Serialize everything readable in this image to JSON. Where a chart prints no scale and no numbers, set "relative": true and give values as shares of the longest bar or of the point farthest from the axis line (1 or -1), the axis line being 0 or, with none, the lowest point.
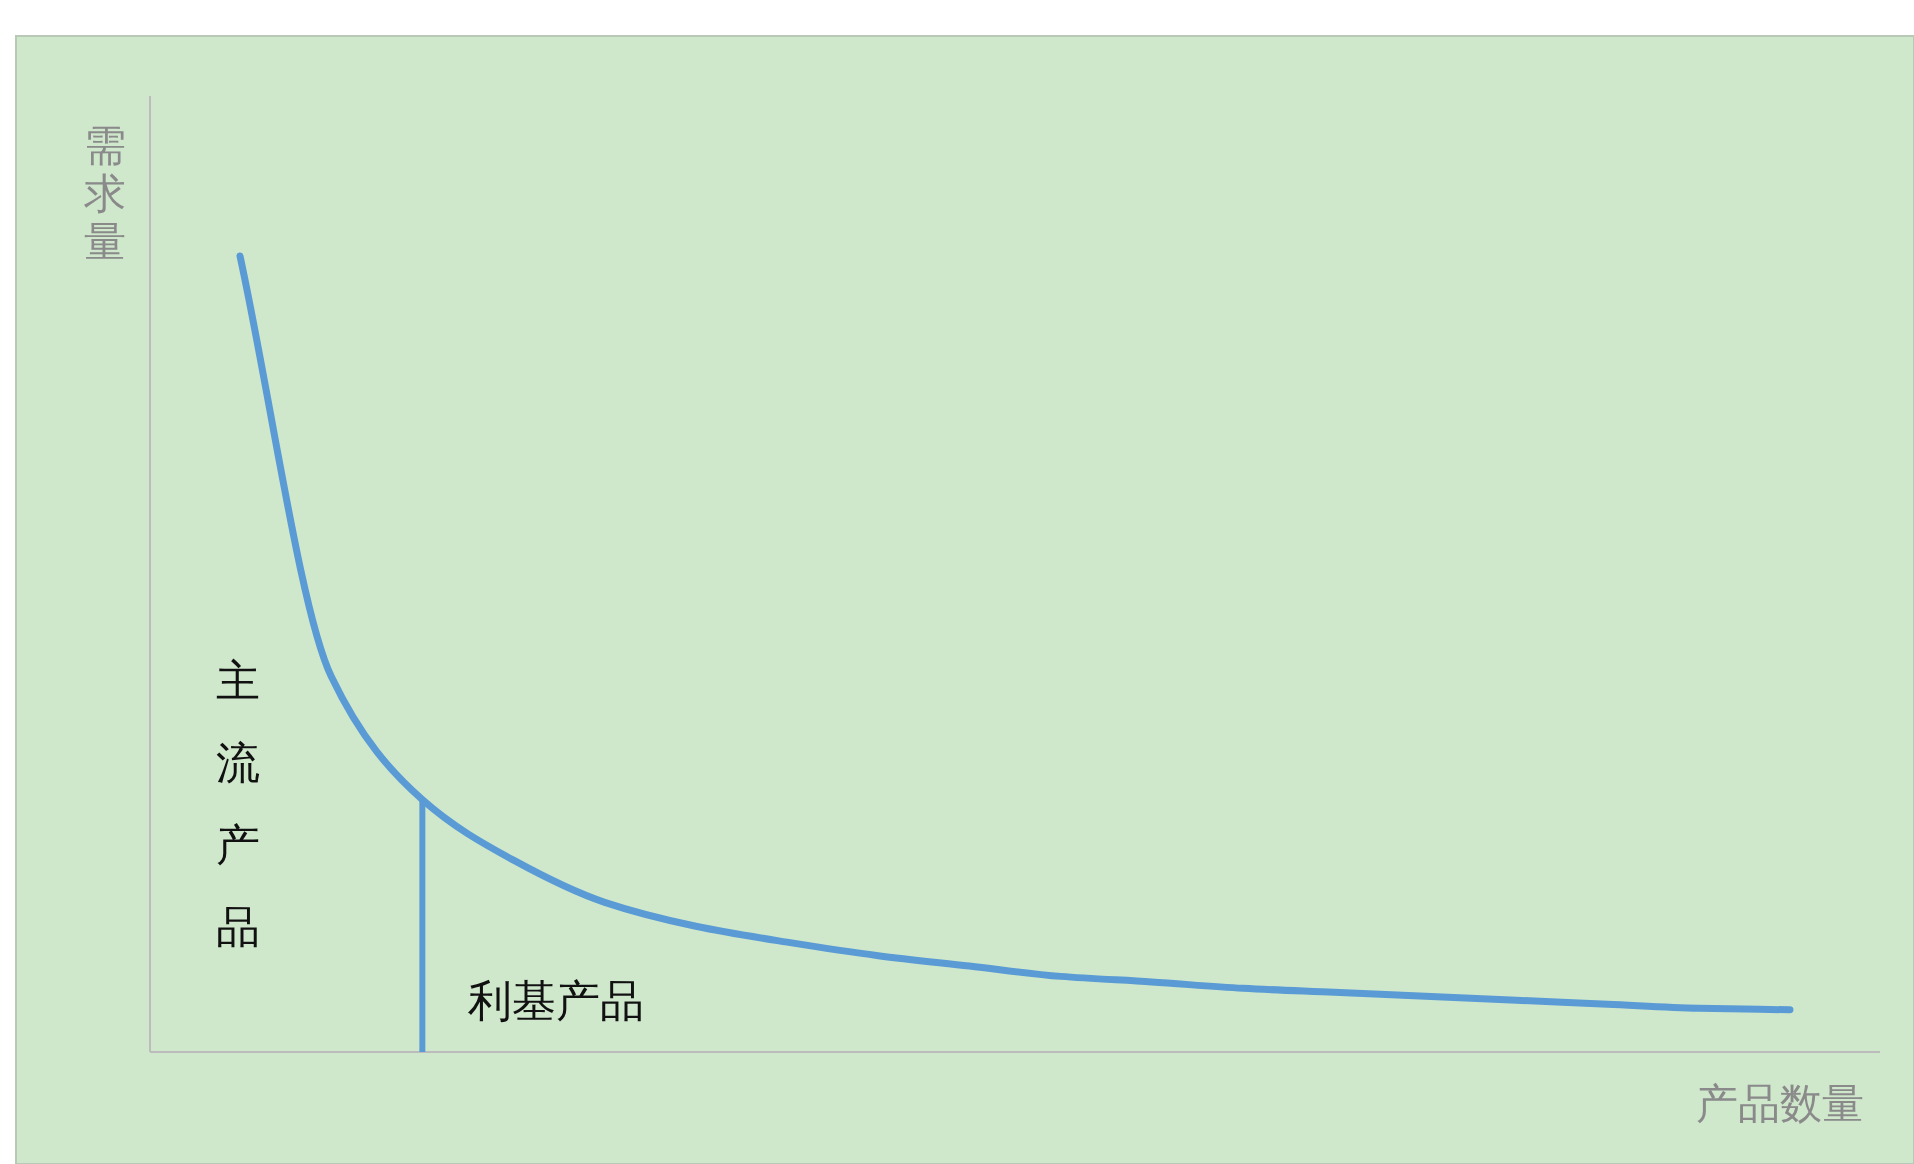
{
  "chart_data": {
    "type": "line",
    "relative": true,
    "xlabel": "产品数量",
    "ylabel": "需求量",
    "categories": [
      null,
      null,
      null,
      null,
      null,
      null,
      null,
      null,
      null,
      null,
      null,
      null,
      null,
      null,
      null,
      null,
      null,
      null
    ],
    "series": [
      {
        "color": "#5b9bd5",
        "values": [
          1.0,
          0.472,
          0.317,
          0.241,
          0.188,
          0.158,
          0.138,
          0.121,
          0.108,
          0.095,
          0.088,
          0.08,
          0.075,
          0.07,
          0.065,
          0.06,
          0.055,
          0.053
        ]
      }
    ],
    "annotations": [
      "主流产品",
      "利基产品"
    ],
    "marker": "none",
    "line_style": "solid"
  }
}
